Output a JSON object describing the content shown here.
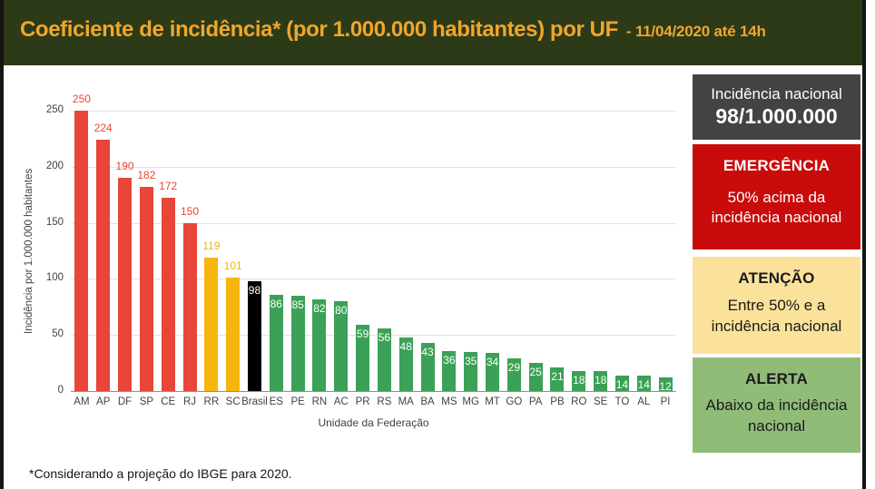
{
  "header": {
    "title": "Coeficiente de incidência* (por 1.000.000 habitantes) por UF",
    "date_suffix": "- 11/04/2020 até 14h",
    "bg_color": "#2c3a18",
    "text_color": "#f0a62b"
  },
  "chart_data": {
    "type": "bar",
    "title": "Coeficiente de incidência (por 1.000.000 habitantes) por UF",
    "xlabel": "Unidade da Federação",
    "ylabel": "Incidência por 1.000.000 habitantes",
    "ylim": [
      0,
      250
    ],
    "yticks": [
      0,
      50,
      100,
      150,
      200,
      250
    ],
    "grid": true,
    "legend_position": "none",
    "categories": [
      "AM",
      "AP",
      "DF",
      "SP",
      "CE",
      "RJ",
      "RR",
      "SC",
      "Brasil",
      "ES",
      "PE",
      "RN",
      "AC",
      "PR",
      "RS",
      "MA",
      "BA",
      "MS",
      "MG",
      "MT",
      "GO",
      "PA",
      "PB",
      "RO",
      "SE",
      "TO",
      "AL",
      "PI"
    ],
    "values": [
      250,
      224,
      190,
      182,
      172,
      150,
      119,
      101,
      98,
      86,
      85,
      82,
      80,
      59,
      56,
      48,
      43,
      36,
      35,
      34,
      29,
      25,
      21,
      18,
      18,
      14,
      14,
      12
    ],
    "statuses": [
      "emergencia",
      "emergencia",
      "emergencia",
      "emergencia",
      "emergencia",
      "emergencia",
      "atencao",
      "atencao",
      "nacional",
      "alerta",
      "alerta",
      "alerta",
      "alerta",
      "alerta",
      "alerta",
      "alerta",
      "alerta",
      "alerta",
      "alerta",
      "alerta",
      "alerta",
      "alerta",
      "alerta",
      "alerta",
      "alerta",
      "alerta",
      "alerta",
      "alerta"
    ],
    "colors": {
      "emergencia": "#e74638",
      "atencao": "#f7b60d",
      "nacional": "#000000",
      "alerta": "#3ba156"
    },
    "label_style": {
      "outside_statuses": [
        "emergencia",
        "atencao"
      ],
      "inside_color": "#ffffff"
    }
  },
  "sidebar": {
    "national": {
      "line1": "Incidência nacional",
      "line2": "98/1.000.000",
      "bg": "#434343",
      "fg": "#ffffff"
    },
    "levels": [
      {
        "title": "EMERGÊNCIA",
        "desc": "50% acima da incidência nacional",
        "bg": "#c90b0b",
        "fg": "#ffffff"
      },
      {
        "title": "ATENÇÃO",
        "desc": "Entre 50% e a incidência nacional",
        "bg": "#fbe29b",
        "fg": "#1a1a1a"
      },
      {
        "title": "ALERTA",
        "desc": "Abaixo da incidência nacional",
        "bg": "#90bc77",
        "fg": "#1a1a1a"
      }
    ]
  },
  "footnote": "*Considerando a projeção do IBGE para 2020."
}
